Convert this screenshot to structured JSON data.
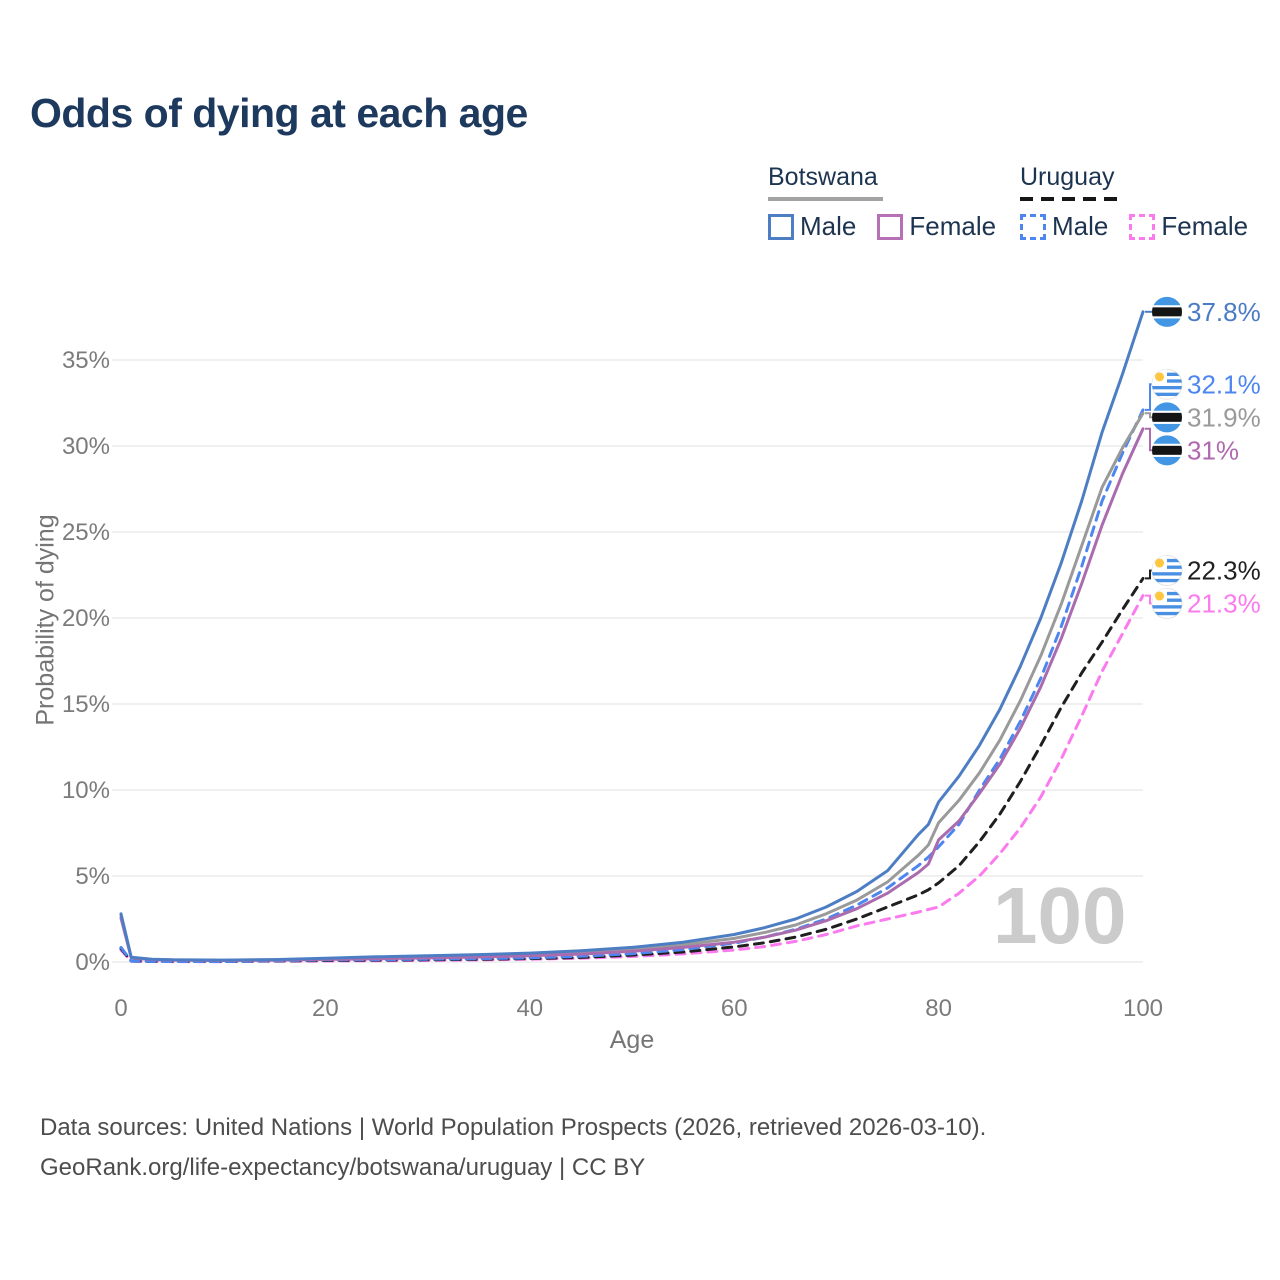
{
  "page": {
    "title": "Odds of dying at each age"
  },
  "legend": {
    "groups": [
      {
        "name": "Botswana",
        "line_style": "solid",
        "line_color": "#a3a3a3",
        "items": [
          {
            "label": "Male",
            "color": "#4d7ec4",
            "dashed": false
          },
          {
            "label": "Female",
            "color": "#b671b6",
            "dashed": false
          }
        ]
      },
      {
        "name": "Uruguay",
        "line_style": "dashed",
        "line_color": "#161616",
        "items": [
          {
            "label": "Male",
            "color": "#4e86f0",
            "dashed": true
          },
          {
            "label": "Female",
            "color": "#fb7bef",
            "dashed": true
          }
        ]
      }
    ]
  },
  "chart_data": {
    "type": "line",
    "title": "Odds of dying at each age",
    "xlabel": "Age",
    "ylabel": "Probability of dying",
    "xlim": [
      0,
      100
    ],
    "ylim": [
      0,
      35
    ],
    "grid": "horizontal",
    "legend_position": "top-right",
    "watermark": "100",
    "x_tick_values": [
      0,
      20,
      40,
      60,
      80,
      100
    ],
    "x_tick_labels": [
      "0",
      "20",
      "40",
      "60",
      "80",
      "100"
    ],
    "y_tick_values": [
      0,
      5,
      10,
      15,
      20,
      25,
      30,
      35
    ],
    "y_tick_labels": [
      "0%",
      "5%",
      "10%",
      "15%",
      "20%",
      "25%",
      "30%",
      "35%"
    ],
    "ages": [
      0,
      1,
      3,
      5,
      10,
      15,
      20,
      25,
      30,
      35,
      40,
      45,
      50,
      55,
      60,
      63,
      66,
      69,
      72,
      75,
      78,
      79,
      80,
      82,
      84,
      86,
      88,
      90,
      92,
      94,
      96,
      98,
      100
    ],
    "series": [
      {
        "id": "botswana-male",
        "name": "Botswana Male",
        "color": "#4d7ec4",
        "label_color": "#4a7bc5",
        "dashed": false,
        "flag": "botswana",
        "end_label": "37.8%",
        "values": [
          2.8,
          0.28,
          0.16,
          0.13,
          0.11,
          0.14,
          0.22,
          0.3,
          0.36,
          0.43,
          0.52,
          0.65,
          0.85,
          1.15,
          1.6,
          2.0,
          2.5,
          3.2,
          4.1,
          5.3,
          7.4,
          8.0,
          9.3,
          10.8,
          12.6,
          14.7,
          17.2,
          20.0,
          23.2,
          26.8,
          30.8,
          34.2,
          37.8
        ]
      },
      {
        "id": "botswana-female",
        "name": "Botswana Female",
        "color": "#aa6cae",
        "label_color": "#b069b0",
        "dashed": false,
        "flag": "botswana",
        "end_label": "31%",
        "values": [
          2.55,
          0.25,
          0.14,
          0.11,
          0.09,
          0.11,
          0.15,
          0.19,
          0.24,
          0.29,
          0.36,
          0.46,
          0.62,
          0.85,
          1.15,
          1.45,
          1.85,
          2.4,
          3.1,
          4.0,
          5.2,
          5.7,
          7.1,
          8.2,
          9.8,
          11.5,
          13.6,
          16.0,
          18.8,
          22.0,
          25.4,
          28.4,
          31.0
        ]
      },
      {
        "id": "botswana-both",
        "name": "Botswana Both sexes",
        "color": "#9a9a9a",
        "label_color": "#9a9a9a",
        "dashed": false,
        "flag": "botswana",
        "end_label": "31.9%",
        "values": [
          2.7,
          0.27,
          0.15,
          0.12,
          0.1,
          0.13,
          0.18,
          0.24,
          0.3,
          0.36,
          0.44,
          0.55,
          0.73,
          1.0,
          1.37,
          1.72,
          2.15,
          2.8,
          3.6,
          4.65,
          6.2,
          6.8,
          8.1,
          9.4,
          11.0,
          12.9,
          15.2,
          17.8,
          20.8,
          24.2,
          27.6,
          29.9,
          31.9
        ]
      },
      {
        "id": "uruguay-male",
        "name": "Uruguay Male",
        "color": "#4e86f0",
        "label_color": "#4e86f0",
        "dashed": true,
        "flag": "uruguay",
        "end_label": "32.1%",
        "values": [
          0.85,
          0.06,
          0.035,
          0.03,
          0.03,
          0.07,
          0.12,
          0.14,
          0.16,
          0.19,
          0.24,
          0.33,
          0.48,
          0.72,
          1.1,
          1.45,
          1.9,
          2.5,
          3.3,
          4.3,
          5.6,
          6.1,
          6.7,
          8.0,
          10.0,
          11.8,
          14.0,
          16.5,
          19.5,
          23.0,
          26.8,
          29.6,
          32.1
        ]
      },
      {
        "id": "uruguay-female",
        "name": "Uruguay Female",
        "color": "#fb7bef",
        "label_color": "#fb7bef",
        "dashed": true,
        "flag": "uruguay",
        "end_label": "21.3%",
        "values": [
          0.7,
          0.05,
          0.03,
          0.025,
          0.025,
          0.045,
          0.06,
          0.075,
          0.095,
          0.12,
          0.16,
          0.22,
          0.32,
          0.47,
          0.7,
          0.9,
          1.2,
          1.6,
          2.1,
          2.5,
          2.9,
          3.05,
          3.2,
          4.0,
          5.0,
          6.3,
          7.8,
          9.6,
          11.8,
          14.3,
          16.9,
          19.1,
          21.3
        ]
      },
      {
        "id": "uruguay-both",
        "name": "Uruguay Both sexes",
        "color": "#1f1f1f",
        "label_color": "#1f1f1f",
        "dashed": true,
        "flag": "uruguay",
        "end_label": "22.3%",
        "values": [
          0.78,
          0.055,
          0.032,
          0.028,
          0.028,
          0.06,
          0.09,
          0.11,
          0.13,
          0.155,
          0.2,
          0.27,
          0.4,
          0.58,
          0.88,
          1.12,
          1.45,
          1.9,
          2.5,
          3.2,
          3.9,
          4.2,
          4.6,
          5.6,
          7.0,
          8.6,
          10.5,
          12.6,
          14.8,
          16.8,
          18.6,
          20.5,
          22.3
        ]
      }
    ],
    "flag_colors": {
      "botswana_blue": "#4296e3",
      "botswana_black": "#141414",
      "uruguay_blue": "#4a90e2",
      "uruguay_sun": "#ffc63f"
    }
  },
  "footer": {
    "line1": "Data sources: United Nations | World Population Prospects (2026, retrieved 2026-03-10).",
    "line2": "GeoRank.org/life-expectancy/botswana/uruguay | CC BY"
  }
}
